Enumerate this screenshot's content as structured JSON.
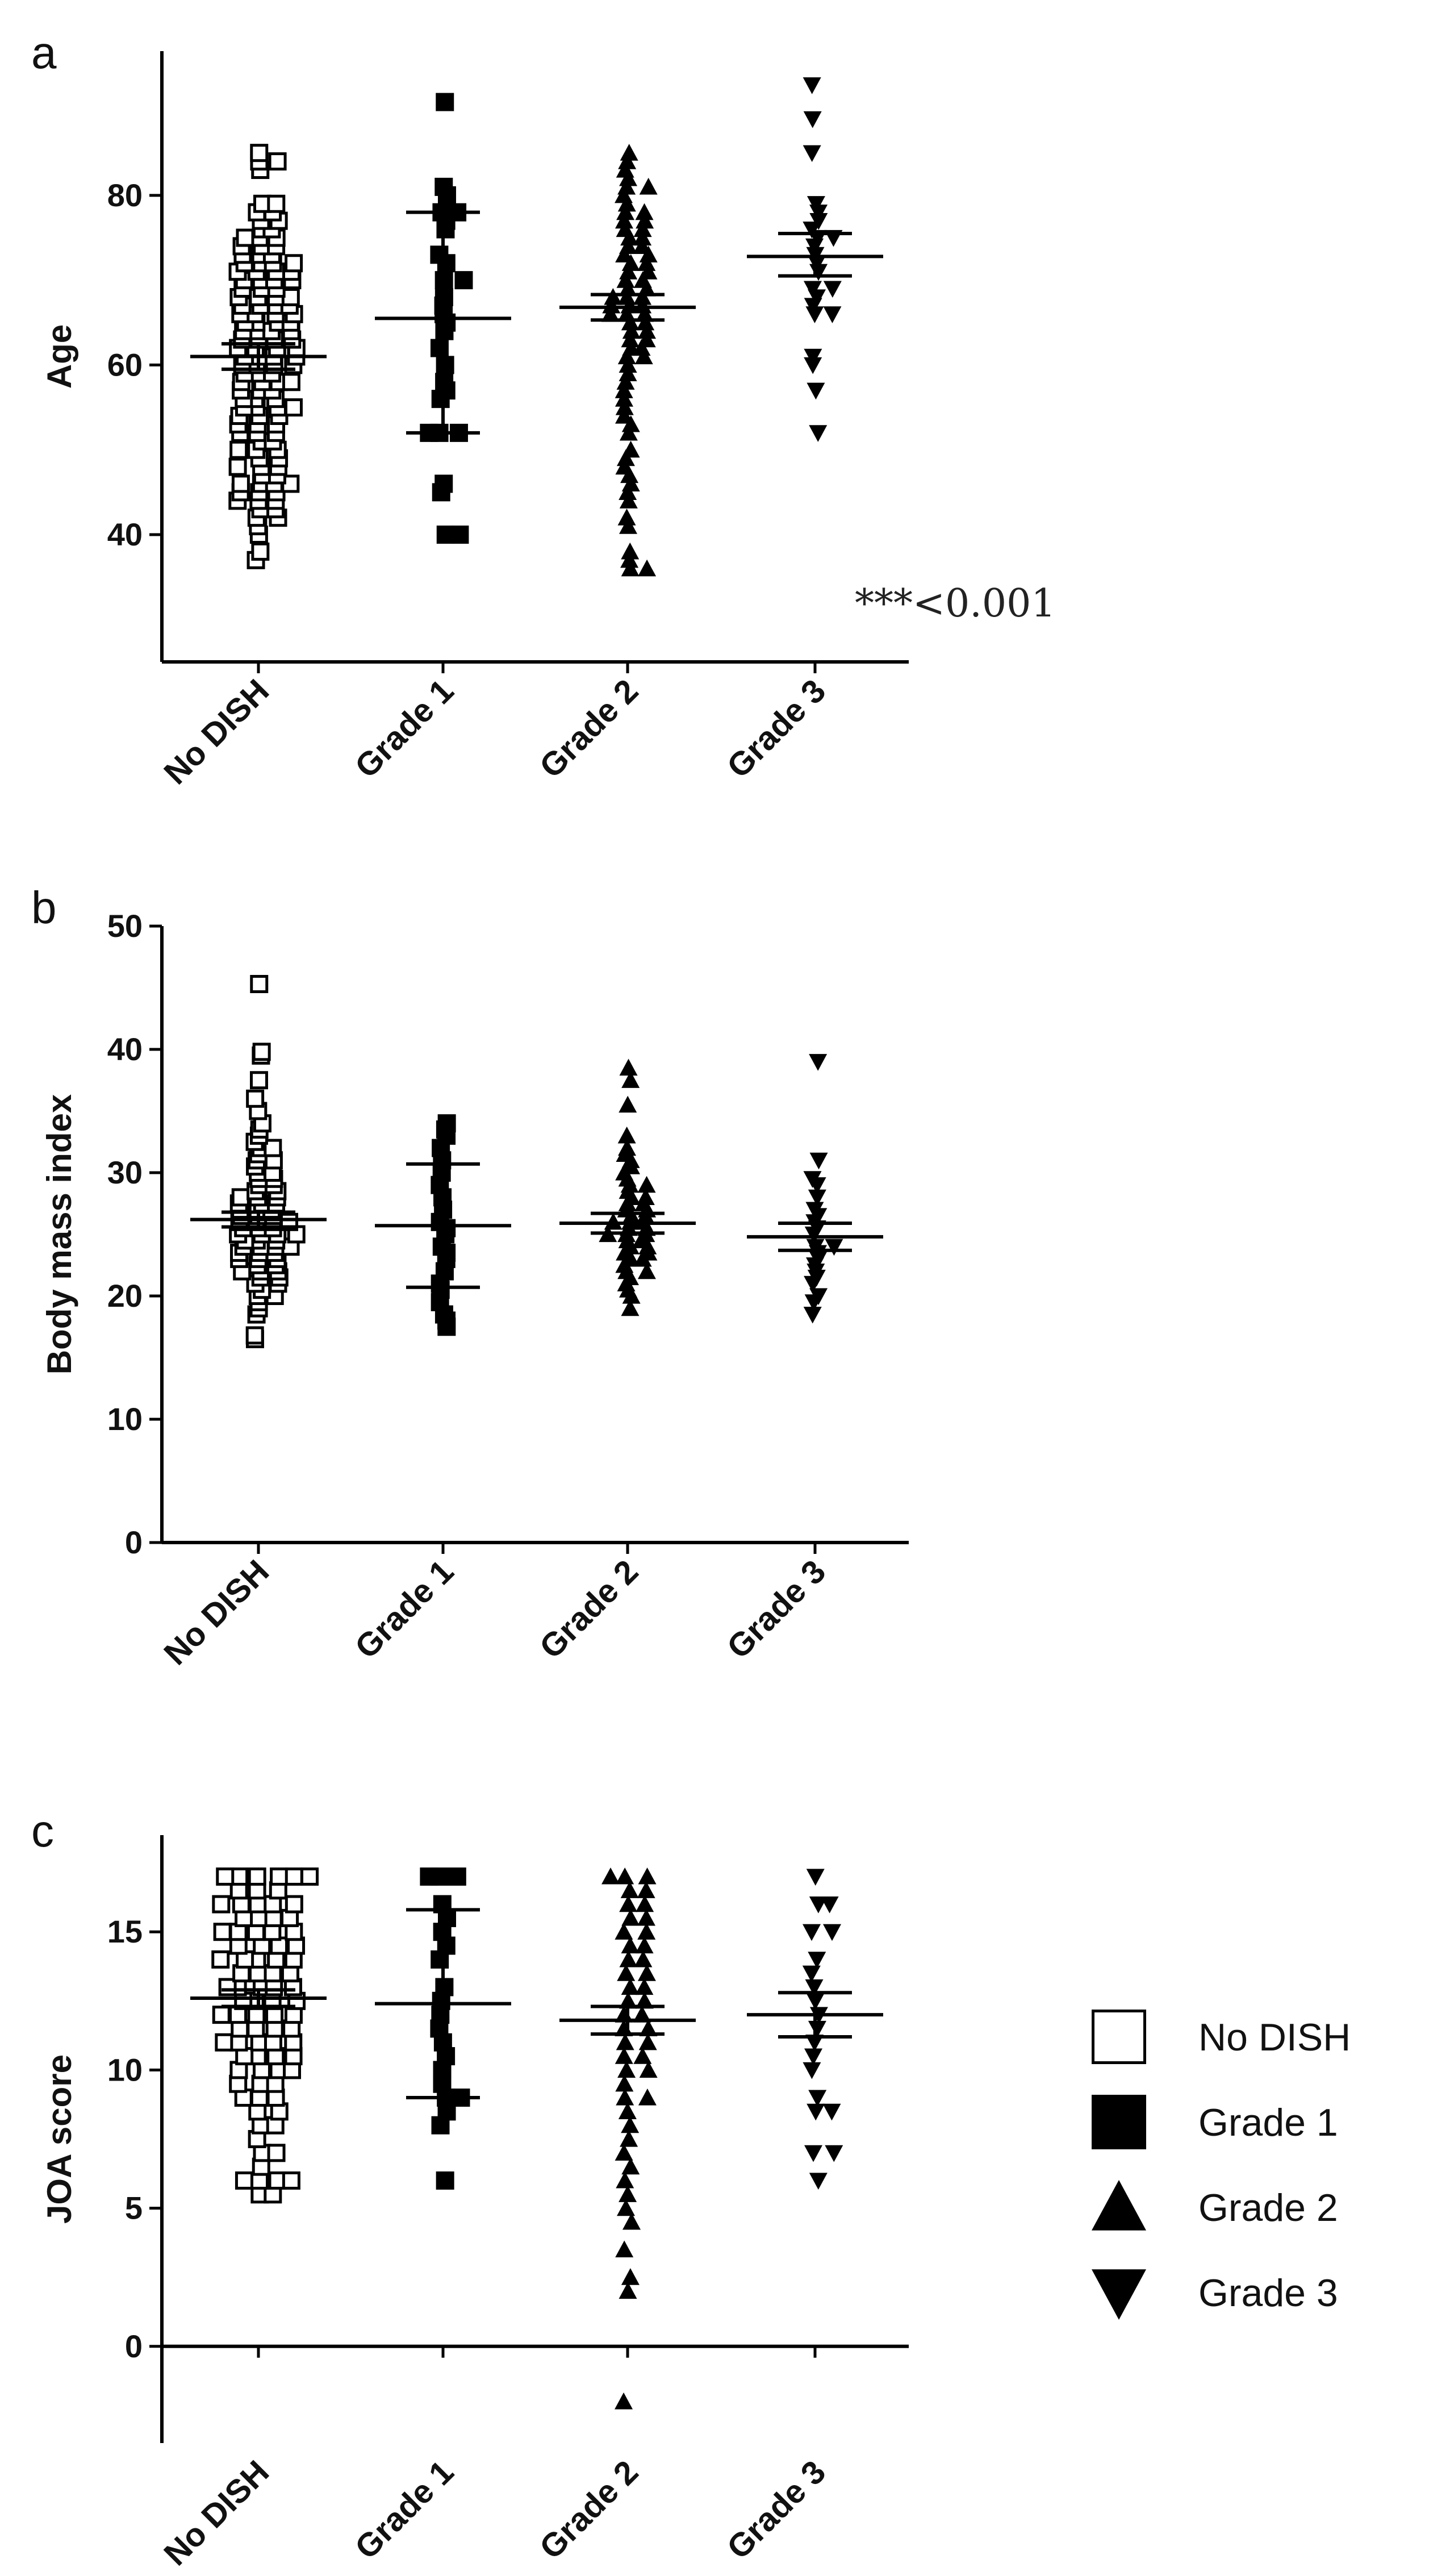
{
  "legend": [
    {
      "label": "No DISH",
      "marker": "open-square"
    },
    {
      "label": "Grade 1",
      "marker": "filled-square"
    },
    {
      "label": "Grade 2",
      "marker": "filled-triangle-up"
    },
    {
      "label": "Grade 3",
      "marker": "filled-triangle-down"
    }
  ],
  "chart_data": [
    {
      "panel": "a",
      "type": "scatter",
      "ylabel": "Age",
      "ylim": [
        25,
        97
      ],
      "yticks": [
        40,
        60,
        80
      ],
      "categories": [
        "No DISH",
        "Grade 1",
        "Grade 2",
        "Grade 3"
      ],
      "annotation": "***<0.001",
      "series": [
        {
          "name": "No DISH",
          "marker": "open-square",
          "mean": 61,
          "error_low": 59.5,
          "error_high": 62.5,
          "values": [
            37,
            38,
            40,
            41,
            42,
            42,
            43,
            43,
            44,
            44,
            44,
            45,
            45,
            45,
            46,
            46,
            46,
            46,
            47,
            47,
            48,
            48,
            48,
            49,
            49,
            50,
            50,
            50,
            51,
            51,
            52,
            52,
            52,
            53,
            53,
            53,
            54,
            54,
            54,
            55,
            55,
            55,
            55,
            56,
            56,
            56,
            57,
            57,
            57,
            58,
            58,
            58,
            58,
            59,
            59,
            59,
            60,
            60,
            60,
            60,
            61,
            61,
            61,
            61,
            62,
            62,
            62,
            62,
            63,
            63,
            63,
            63,
            64,
            64,
            64,
            64,
            65,
            65,
            65,
            65,
            66,
            66,
            66,
            66,
            67,
            67,
            67,
            67,
            68,
            68,
            68,
            68,
            69,
            69,
            69,
            70,
            70,
            70,
            70,
            71,
            71,
            71,
            71,
            72,
            72,
            72,
            72,
            73,
            73,
            73,
            74,
            74,
            74,
            75,
            75,
            75,
            76,
            76,
            77,
            77,
            78,
            78,
            79,
            79,
            83,
            84,
            84,
            85
          ]
        },
        {
          "name": "Grade 1",
          "marker": "filled-square",
          "mean": 65.5,
          "error_low": 52,
          "error_high": 78,
          "values": [
            40,
            40,
            45,
            46,
            52,
            52,
            52,
            56,
            57,
            58,
            60,
            62,
            64,
            65,
            66,
            67,
            68,
            70,
            70,
            72,
            73,
            76,
            77,
            78,
            78,
            80,
            81,
            91
          ]
        },
        {
          "name": "Grade 2",
          "marker": "filled-triangle-up",
          "mean": 66.8,
          "error_low": 65.3,
          "error_high": 68.3,
          "values": [
            36,
            36,
            37,
            38,
            41,
            42,
            44,
            45,
            46,
            47,
            48,
            49,
            50,
            52,
            53,
            54,
            55,
            56,
            57,
            58,
            59,
            60,
            61,
            61,
            62,
            62,
            63,
            63,
            64,
            64,
            65,
            65,
            66,
            66,
            66,
            67,
            67,
            67,
            68,
            68,
            68,
            69,
            69,
            70,
            70,
            71,
            71,
            72,
            72,
            73,
            73,
            74,
            74,
            75,
            75,
            76,
            76,
            77,
            77,
            78,
            78,
            79,
            80,
            81,
            81,
            82,
            83,
            84,
            85
          ]
        },
        {
          "name": "Grade 3",
          "marker": "filled-triangle-down",
          "mean": 72.8,
          "error_low": 70.5,
          "error_high": 75.5,
          "values": [
            52,
            57,
            60,
            61,
            66,
            66,
            67,
            68,
            69,
            69,
            71,
            72,
            73,
            74,
            75,
            75,
            76,
            77,
            78,
            79,
            85,
            89,
            93
          ]
        }
      ]
    },
    {
      "panel": "b",
      "type": "scatter",
      "ylabel": "Body mass index",
      "ylim": [
        0,
        50
      ],
      "yticks": [
        0,
        10,
        20,
        30,
        40,
        50
      ],
      "categories": [
        "No DISH",
        "Grade 1",
        "Grade 2",
        "Grade 3"
      ],
      "series": [
        {
          "name": "No DISH",
          "marker": "open-square",
          "mean": 26.2,
          "error_low": 25.6,
          "error_high": 26.8,
          "values": [
            16.5,
            16.8,
            18.5,
            19,
            19.5,
            20,
            20,
            20.5,
            21,
            21,
            21.5,
            21.5,
            22,
            22,
            22,
            22.5,
            22.5,
            23,
            23,
            23,
            23.5,
            23.5,
            23.5,
            24,
            24,
            24,
            24,
            24.5,
            24.5,
            24.5,
            25,
            25,
            25,
            25,
            25.5,
            25.5,
            25.5,
            26,
            26,
            26,
            26,
            26.5,
            26.5,
            26.5,
            27,
            27,
            27,
            27.5,
            27.5,
            27.5,
            28,
            28,
            28,
            28.5,
            28.5,
            29,
            29,
            29.5,
            29.5,
            30,
            30,
            30.5,
            31,
            31,
            31.5,
            32,
            32,
            32.5,
            33,
            33.5,
            34,
            35,
            36,
            37.5,
            39.5,
            39.8,
            45.3
          ]
        },
        {
          "name": "Grade 1",
          "marker": "filled-square",
          "mean": 25.7,
          "error_low": 20.7,
          "error_high": 30.7,
          "values": [
            17.5,
            18,
            18.5,
            19.5,
            20.5,
            21,
            22,
            23,
            23.5,
            24,
            25,
            25.5,
            26,
            27,
            28,
            29,
            30,
            31,
            32,
            33,
            33.5,
            34
          ]
        },
        {
          "name": "Grade 2",
          "marker": "filled-triangle-up",
          "mean": 25.9,
          "error_low": 25.1,
          "error_high": 26.7,
          "values": [
            19,
            20,
            20.5,
            21,
            21.5,
            22,
            22,
            22.5,
            23,
            23,
            23.5,
            23.5,
            24,
            24,
            24.5,
            24.5,
            25,
            25,
            25,
            25.5,
            25.5,
            26,
            26,
            26,
            26.5,
            26.5,
            27,
            27,
            27.5,
            27.5,
            28,
            28,
            28.5,
            29,
            29,
            29.5,
            30,
            30.5,
            31,
            31.5,
            32,
            33,
            35.5,
            37.5,
            38.5
          ]
        },
        {
          "name": "Grade 3",
          "marker": "filled-triangle-down",
          "mean": 24.8,
          "error_low": 23.7,
          "error_high": 25.9,
          "values": [
            18.5,
            19.5,
            20,
            21,
            21.5,
            22,
            22.5,
            23,
            23.5,
            24,
            24,
            25,
            25.5,
            26,
            26.5,
            27,
            28,
            29,
            29.5,
            31,
            39
          ]
        }
      ]
    },
    {
      "panel": "c",
      "type": "scatter",
      "ylabel": "JOA score",
      "ylim": [
        -3.5,
        18.5
      ],
      "yticks": [
        0,
        5,
        10,
        15
      ],
      "categories": [
        "No DISH",
        "Grade 1",
        "Grade 2",
        "Grade 3"
      ],
      "series": [
        {
          "name": "No DISH",
          "marker": "open-square",
          "mean": 12.6,
          "error_low": 12.3,
          "error_high": 12.9,
          "values": [
            5.5,
            5.5,
            6,
            6,
            6,
            6,
            6.5,
            7,
            7,
            7.5,
            8,
            8,
            8.5,
            8.5,
            9,
            9,
            9,
            9.5,
            9.5,
            9.5,
            10,
            10,
            10,
            10,
            10.5,
            10.5,
            10.5,
            10.5,
            11,
            11,
            11,
            11,
            11,
            11.5,
            11.5,
            11.5,
            11.5,
            12,
            12,
            12,
            12,
            12,
            12.5,
            12.5,
            12.5,
            12.5,
            13,
            13,
            13,
            13,
            13,
            13.5,
            13.5,
            13.5,
            13.5,
            14,
            14,
            14,
            14,
            14,
            14.5,
            14.5,
            14.5,
            14.5,
            15,
            15,
            15,
            15,
            15,
            15.5,
            15.5,
            15.5,
            15.5,
            16,
            16,
            16,
            16,
            16,
            16.5,
            16.5,
            16.5,
            17,
            17,
            17,
            17,
            17,
            17
          ]
        },
        {
          "name": "Grade 1",
          "marker": "filled-square",
          "mean": 12.4,
          "error_low": 9,
          "error_high": 15.8,
          "values": [
            6,
            8,
            8.5,
            9,
            9,
            9.5,
            10,
            10.5,
            11,
            11.5,
            12,
            12.5,
            13,
            14,
            14.5,
            15,
            15.5,
            16,
            17,
            17,
            17
          ]
        },
        {
          "name": "Grade 2",
          "marker": "filled-triangle-up",
          "mean": 11.8,
          "error_low": 11.3,
          "error_high": 12.3,
          "values": [
            -2,
            2,
            2.5,
            3.5,
            4.5,
            5,
            5.5,
            6,
            6.5,
            7,
            7.5,
            8,
            8.5,
            9,
            9,
            9.5,
            10,
            10,
            10.5,
            10.5,
            11,
            11,
            11.5,
            11.5,
            12,
            12,
            12.5,
            12.5,
            13,
            13,
            13.5,
            13.5,
            14,
            14,
            14.5,
            14.5,
            15,
            15,
            15.5,
            15.5,
            16,
            16,
            16.5,
            16.5,
            17,
            17,
            17
          ]
        },
        {
          "name": "Grade 3",
          "marker": "filled-triangle-down",
          "mean": 12,
          "error_low": 11.2,
          "error_high": 12.8,
          "values": [
            6,
            7,
            7,
            8.5,
            8.5,
            9,
            10,
            10.5,
            11,
            11.5,
            12,
            12.5,
            13,
            13.5,
            14,
            15,
            15,
            16,
            16,
            17
          ]
        }
      ]
    }
  ]
}
